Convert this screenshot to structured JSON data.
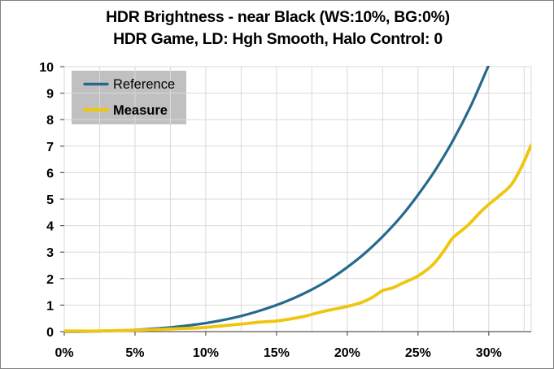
{
  "frame": {
    "background": "#FFFFFF",
    "border_color": "#7F7F7F",
    "text_color": "#000000"
  },
  "chart_data": {
    "type": "line",
    "title": "HDR Brightness - near Black (WS:10%, BG:0%)",
    "subtitle": "HDR Game, LD: Hgh Smooth, Halo Control: 0",
    "xlabel": "",
    "ylabel": "",
    "xlim": [
      0,
      33
    ],
    "ylim": [
      0,
      10
    ],
    "grid": true,
    "grid_color": "#D9D9D9",
    "axis_color": "#595959",
    "plot_border_color": "#D9D9D9",
    "x_minor_grid_step_percent": 2.5,
    "x_ticks": [
      {
        "value": 0,
        "label": "0%"
      },
      {
        "value": 5,
        "label": "5%"
      },
      {
        "value": 10,
        "label": "10%"
      },
      {
        "value": 15,
        "label": "15%"
      },
      {
        "value": 20,
        "label": "20%"
      },
      {
        "value": 25,
        "label": "25%"
      },
      {
        "value": 30,
        "label": "30%"
      }
    ],
    "y_ticks": [
      {
        "value": 0,
        "label": "0"
      },
      {
        "value": 1,
        "label": "1"
      },
      {
        "value": 2,
        "label": "2"
      },
      {
        "value": 3,
        "label": "3"
      },
      {
        "value": 4,
        "label": "4"
      },
      {
        "value": 5,
        "label": "5"
      },
      {
        "value": 6,
        "label": "6"
      },
      {
        "value": 7,
        "label": "7"
      },
      {
        "value": 8,
        "label": "8"
      },
      {
        "value": 9,
        "label": "9"
      },
      {
        "value": 10,
        "label": "10"
      }
    ],
    "legend": {
      "position": "top-left",
      "background": "#C0C0C0",
      "entries": [
        "Reference",
        "Measure"
      ]
    },
    "series": [
      {
        "name": "Reference",
        "color": "#26698C",
        "stroke_width": 3.2,
        "bold_legend": false,
        "points": [
          [
            0,
            0
          ],
          [
            1,
            0
          ],
          [
            2,
            0.01
          ],
          [
            3,
            0.02
          ],
          [
            4,
            0.04
          ],
          [
            5,
            0.06
          ],
          [
            6,
            0.1
          ],
          [
            7.5,
            0.16
          ],
          [
            8.75,
            0.23
          ],
          [
            10,
            0.32
          ],
          [
            11.25,
            0.44
          ],
          [
            12.5,
            0.59
          ],
          [
            13.75,
            0.78
          ],
          [
            15,
            1.0
          ],
          [
            16.25,
            1.27
          ],
          [
            17.5,
            1.59
          ],
          [
            18.75,
            1.97
          ],
          [
            20,
            2.43
          ],
          [
            21.25,
            2.96
          ],
          [
            22.5,
            3.59
          ],
          [
            23.75,
            4.31
          ],
          [
            25,
            5.16
          ],
          [
            26.25,
            6.12
          ],
          [
            27.5,
            7.24
          ],
          [
            28.75,
            8.54
          ],
          [
            30,
            10.06
          ]
        ]
      },
      {
        "name": "Measure",
        "color": "#F0C50E",
        "stroke_width": 3.8,
        "bold_legend": true,
        "points": [
          [
            0,
            0.02
          ],
          [
            1,
            0.02
          ],
          [
            2,
            0.02
          ],
          [
            3,
            0.03
          ],
          [
            4,
            0.04
          ],
          [
            5,
            0.05
          ],
          [
            6,
            0.07
          ],
          [
            7,
            0.09
          ],
          [
            8,
            0.11
          ],
          [
            9,
            0.13
          ],
          [
            10,
            0.16
          ],
          [
            11,
            0.21
          ],
          [
            12,
            0.26
          ],
          [
            13,
            0.31
          ],
          [
            13.8,
            0.36
          ],
          [
            15,
            0.4
          ],
          [
            16,
            0.48
          ],
          [
            17,
            0.58
          ],
          [
            17.5,
            0.65
          ],
          [
            18.3,
            0.76
          ],
          [
            19,
            0.84
          ],
          [
            20,
            0.95
          ],
          [
            21,
            1.1
          ],
          [
            21.8,
            1.3
          ],
          [
            22.5,
            1.55
          ],
          [
            23.2,
            1.65
          ],
          [
            24,
            1.85
          ],
          [
            25,
            2.1
          ],
          [
            26,
            2.5
          ],
          [
            26.7,
            2.95
          ],
          [
            27.4,
            3.5
          ],
          [
            27.7,
            3.65
          ],
          [
            28.5,
            4.0
          ],
          [
            29.3,
            4.45
          ],
          [
            30,
            4.8
          ],
          [
            30.8,
            5.15
          ],
          [
            31.6,
            5.55
          ],
          [
            32.3,
            6.2
          ],
          [
            33,
            7.05
          ]
        ]
      }
    ]
  }
}
